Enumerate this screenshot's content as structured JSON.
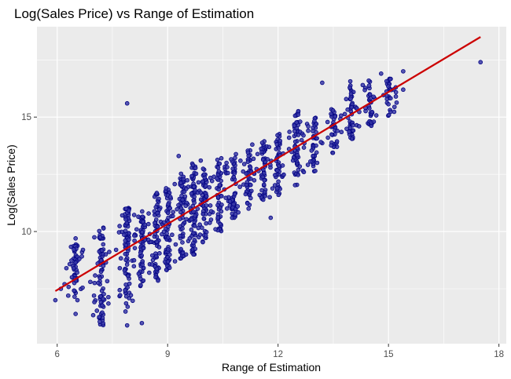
{
  "chart_data": {
    "type": "scatter",
    "title": "Log(Sales Price) vs Range of Estimation",
    "xlabel": "Range of Estimation",
    "ylabel": "Log(Sales Price)",
    "xlim": [
      5.45,
      18.2
    ],
    "ylim": [
      5.1,
      18.95
    ],
    "x_ticks": [
      6,
      9,
      12,
      15,
      18
    ],
    "y_ticks": [
      10,
      15
    ],
    "grid": true,
    "legend": "none",
    "colors": {
      "panel": "#ebebeb",
      "grid_major": "#ffffff",
      "point_fill": "#3a3aa8",
      "point_stroke": "#000080",
      "fit_line": "#cc0000"
    },
    "fit_line": {
      "x": [
        5.95,
        17.5
      ],
      "y": [
        7.4,
        18.5
      ]
    },
    "series": [
      {
        "clusters": [
          {
            "x": 6.5,
            "ymin": 7.0,
            "ymax": 9.6
          },
          {
            "x": 7.2,
            "ymin": 5.9,
            "ymax": 10.2
          },
          {
            "x": 7.9,
            "ymin": 6.5,
            "ymax": 11.2
          },
          {
            "x": 8.3,
            "ymin": 7.5,
            "ymax": 11.1
          },
          {
            "x": 8.7,
            "ymin": 7.8,
            "ymax": 11.7
          },
          {
            "x": 9.0,
            "ymin": 8.3,
            "ymax": 12.0
          },
          {
            "x": 9.4,
            "ymin": 8.8,
            "ymax": 12.6
          },
          {
            "x": 9.7,
            "ymin": 9.0,
            "ymax": 13.0
          },
          {
            "x": 10.0,
            "ymin": 9.5,
            "ymax": 12.8
          },
          {
            "x": 10.4,
            "ymin": 10.0,
            "ymax": 13.2
          },
          {
            "x": 10.8,
            "ymin": 10.5,
            "ymax": 13.5
          },
          {
            "x": 11.2,
            "ymin": 11.0,
            "ymax": 13.6
          },
          {
            "x": 11.6,
            "ymin": 11.2,
            "ymax": 14.0
          },
          {
            "x": 12.0,
            "ymin": 11.6,
            "ymax": 14.3
          },
          {
            "x": 12.5,
            "ymin": 12.0,
            "ymax": 15.3
          },
          {
            "x": 13.0,
            "ymin": 12.6,
            "ymax": 15.0
          },
          {
            "x": 13.5,
            "ymin": 13.4,
            "ymax": 15.4
          },
          {
            "x": 14.0,
            "ymin": 14.0,
            "ymax": 16.6
          },
          {
            "x": 14.5,
            "ymin": 14.6,
            "ymax": 16.6
          },
          {
            "x": 15.0,
            "ymin": 15.0,
            "ymax": 16.8
          }
        ],
        "points": [
          {
            "x": 5.95,
            "y": 7.0
          },
          {
            "x": 6.1,
            "y": 7.5
          },
          {
            "x": 6.2,
            "y": 7.7
          },
          {
            "x": 6.25,
            "y": 8.4
          },
          {
            "x": 6.3,
            "y": 7.2
          },
          {
            "x": 6.4,
            "y": 8.0
          },
          {
            "x": 6.45,
            "y": 8.4
          },
          {
            "x": 6.5,
            "y": 9.7
          },
          {
            "x": 6.5,
            "y": 6.4
          },
          {
            "x": 6.6,
            "y": 8.8
          },
          {
            "x": 6.7,
            "y": 9.2
          },
          {
            "x": 6.9,
            "y": 7.8
          },
          {
            "x": 7.0,
            "y": 7.2
          },
          {
            "x": 7.1,
            "y": 8.6
          },
          {
            "x": 7.6,
            "y": 9.2
          },
          {
            "x": 7.7,
            "y": 8.4
          },
          {
            "x": 7.9,
            "y": 15.6
          },
          {
            "x": 7.9,
            "y": 5.9
          },
          {
            "x": 8.1,
            "y": 9.6
          },
          {
            "x": 8.3,
            "y": 6.0
          },
          {
            "x": 8.5,
            "y": 8.2
          },
          {
            "x": 8.9,
            "y": 10.4
          },
          {
            "x": 9.2,
            "y": 8.7
          },
          {
            "x": 9.3,
            "y": 13.3
          },
          {
            "x": 9.5,
            "y": 9.0
          },
          {
            "x": 9.6,
            "y": 9.7
          },
          {
            "x": 9.9,
            "y": 13.1
          },
          {
            "x": 10.3,
            "y": 10.1
          },
          {
            "x": 10.6,
            "y": 13.0
          },
          {
            "x": 10.9,
            "y": 11.1
          },
          {
            "x": 11.3,
            "y": 13.8
          },
          {
            "x": 11.5,
            "y": 11.6
          },
          {
            "x": 11.8,
            "y": 10.6
          },
          {
            "x": 12.3,
            "y": 14.1
          },
          {
            "x": 12.6,
            "y": 14.8
          },
          {
            "x": 12.7,
            "y": 12.6
          },
          {
            "x": 13.2,
            "y": 16.5
          },
          {
            "x": 13.6,
            "y": 13.7
          },
          {
            "x": 14.2,
            "y": 14.6
          },
          {
            "x": 14.3,
            "y": 16.4
          },
          {
            "x": 14.6,
            "y": 14.8
          },
          {
            "x": 14.8,
            "y": 16.9
          },
          {
            "x": 15.2,
            "y": 15.9
          },
          {
            "x": 15.4,
            "y": 16.2
          },
          {
            "x": 15.4,
            "y": 17.0
          },
          {
            "x": 17.5,
            "y": 17.4
          }
        ]
      }
    ]
  }
}
